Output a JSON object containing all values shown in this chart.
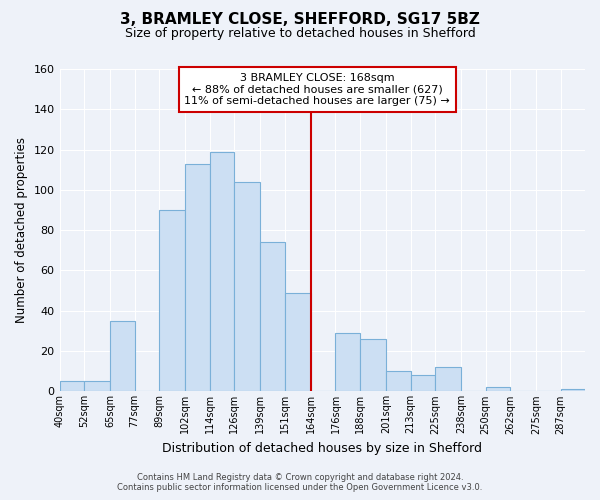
{
  "title": "3, BRAMLEY CLOSE, SHEFFORD, SG17 5BZ",
  "subtitle": "Size of property relative to detached houses in Shefford",
  "xlabel": "Distribution of detached houses by size in Shefford",
  "ylabel": "Number of detached properties",
  "bin_labels": [
    "40sqm",
    "52sqm",
    "65sqm",
    "77sqm",
    "89sqm",
    "102sqm",
    "114sqm",
    "126sqm",
    "139sqm",
    "151sqm",
    "164sqm",
    "176sqm",
    "188sqm",
    "201sqm",
    "213sqm",
    "225sqm",
    "238sqm",
    "250sqm",
    "262sqm",
    "275sqm",
    "287sqm"
  ],
  "bar_heights": [
    5,
    5,
    35,
    0,
    90,
    113,
    119,
    104,
    74,
    49,
    0,
    29,
    26,
    10,
    8,
    12,
    0,
    2,
    0,
    0,
    1
  ],
  "bar_color": "#ccdff3",
  "bar_edge_color": "#7ab0d8",
  "ylim": [
    0,
    160
  ],
  "yticks": [
    0,
    20,
    40,
    60,
    80,
    100,
    120,
    140,
    160
  ],
  "property_line_color": "#cc0000",
  "annotation_title": "3 BRAMLEY CLOSE: 168sqm",
  "annotation_line1": "← 88% of detached houses are smaller (627)",
  "annotation_line2": "11% of semi-detached houses are larger (75) →",
  "annotation_box_color": "#ffffff",
  "annotation_box_edge": "#cc0000",
  "footer_line1": "Contains HM Land Registry data © Crown copyright and database right 2024.",
  "footer_line2": "Contains public sector information licensed under the Open Government Licence v3.0.",
  "background_color": "#eef2f9",
  "grid_color": "#ffffff"
}
